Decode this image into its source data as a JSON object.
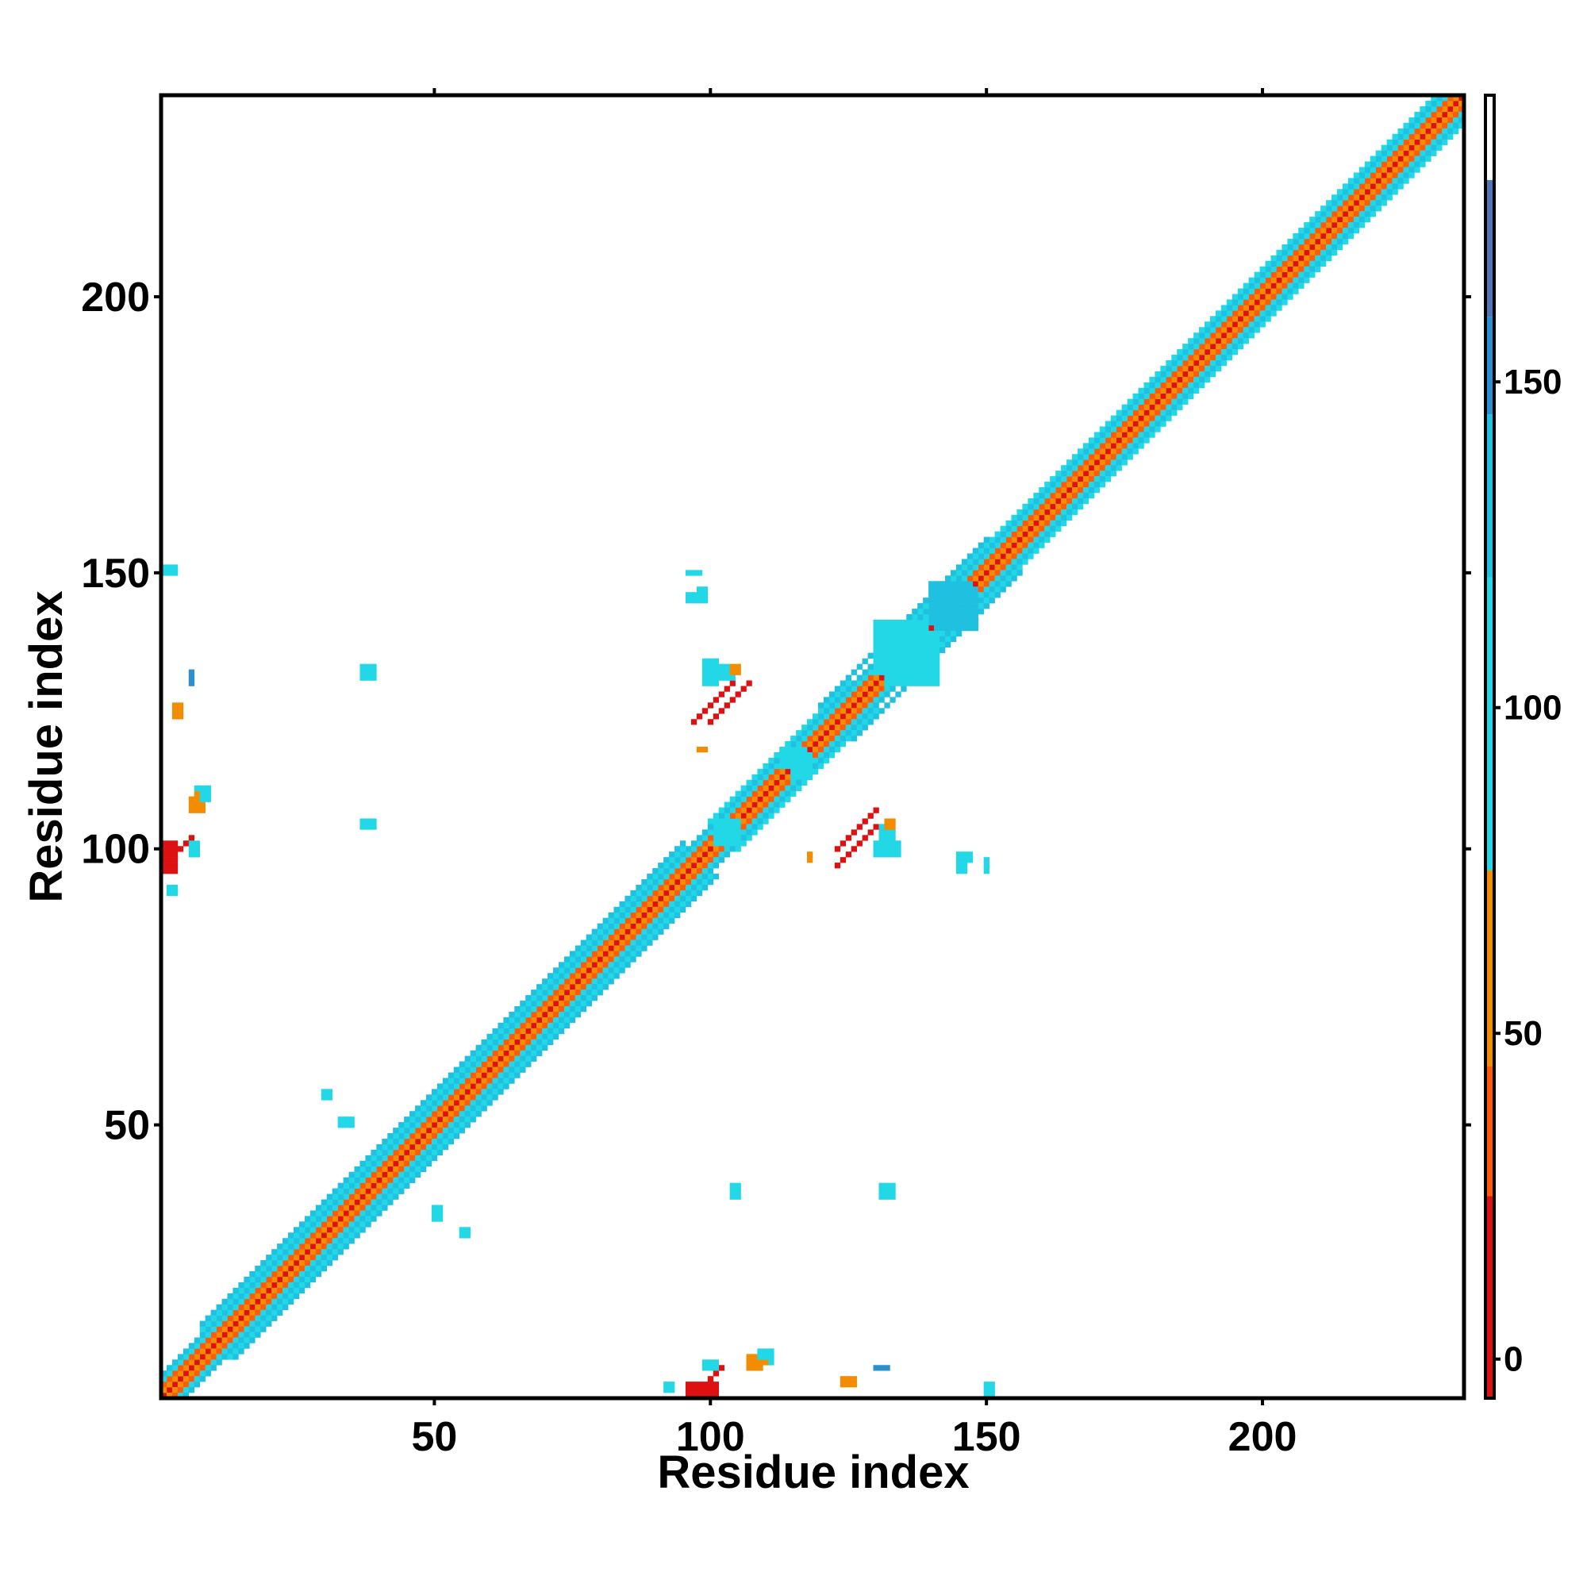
{
  "chart_data": {
    "type": "heatmap",
    "title": "",
    "xlabel": "Residue index",
    "ylabel": "Residue index",
    "xlim": [
      1,
      236
    ],
    "ylim": [
      1,
      236
    ],
    "x_ticks": [
      50,
      100,
      150,
      200
    ],
    "y_ticks": [
      50,
      100,
      150,
      200
    ],
    "grid": false,
    "colorbar": {
      "range": [
        -6,
        194
      ],
      "ticks": [
        0,
        50,
        100,
        150
      ],
      "bands": [
        {
          "from": -6,
          "to": 25,
          "color": "#dd1111"
        },
        {
          "from": 25,
          "to": 45,
          "color": "#ff5a0a"
        },
        {
          "from": 45,
          "to": 75,
          "color": "#f28c00"
        },
        {
          "from": 75,
          "to": 120,
          "color": "#22d8e6"
        },
        {
          "from": 120,
          "to": 145,
          "color": "#1fc0e0"
        },
        {
          "from": 145,
          "to": 160,
          "color": "#2e8fcf"
        },
        {
          "from": 160,
          "to": 181,
          "color": "#5076b8"
        },
        {
          "from": 181,
          "to": 194,
          "color": "#ffffff"
        }
      ]
    },
    "symmetric": true,
    "regions": [
      {
        "kind": "band",
        "from": 1,
        "to": 236,
        "offset": 0,
        "value": -5
      },
      {
        "kind": "band",
        "from": 1,
        "to": 236,
        "offset": 1,
        "value": 60
      },
      {
        "kind": "band",
        "from": 1,
        "to": 236,
        "offset": 2,
        "value": 35
      },
      {
        "kind": "band",
        "from": 1,
        "to": 236,
        "offset": 3,
        "value": 100
      },
      {
        "kind": "band",
        "from": 1,
        "to": 236,
        "offset": 4,
        "value": 120
      },
      {
        "kind": "band",
        "from": 8,
        "to": 95,
        "offset": 5,
        "value": 95
      },
      {
        "kind": "band",
        "from": 8,
        "to": 95,
        "offset": 6,
        "value": 130
      },
      {
        "kind": "band",
        "from": 100,
        "to": 125,
        "offset": 5,
        "value": 95
      },
      {
        "kind": "band",
        "from": 135,
        "to": 160,
        "offset": 5,
        "value": 95
      },
      {
        "kind": "band",
        "from": 160,
        "to": 236,
        "offset": 5,
        "value": 110
      },
      {
        "kind": "band",
        "from": 120,
        "to": 150,
        "offset": 6,
        "value": 140
      },
      {
        "kind": "antidiag",
        "x0": 97,
        "y0": 1,
        "len": 6,
        "value": 5
      },
      {
        "kind": "antidiag",
        "x0": 98,
        "y0": 2,
        "len": 5,
        "value": 10
      },
      {
        "kind": "antidiag",
        "x0": 123,
        "y0": 100,
        "len": 8,
        "value": 5
      },
      {
        "kind": "antidiag",
        "x0": 124,
        "y0": 101,
        "len": 7,
        "value": 15
      },
      {
        "kind": "antidiag",
        "x0": 97,
        "y0": 123,
        "len": 8,
        "value": 5
      },
      {
        "kind": "antidiag",
        "x0": 98,
        "y0": 124,
        "len": 7,
        "value": 15
      },
      {
        "kind": "block",
        "x0": 101,
        "y0": 101,
        "w": 5,
        "h": 5,
        "value": 110
      },
      {
        "kind": "block",
        "x0": 115,
        "y0": 113,
        "w": 4,
        "h": 5,
        "value": 110
      },
      {
        "kind": "block",
        "x0": 130,
        "y0": 132,
        "w": 10,
        "h": 10,
        "value": 115
      },
      {
        "kind": "block",
        "x0": 141,
        "y0": 140,
        "w": 8,
        "h": 8,
        "value": 125
      },
      {
        "kind": "block",
        "x0": 1,
        "y0": 96,
        "w": 3,
        "h": 6,
        "value": 5
      },
      {
        "kind": "block",
        "x0": 6,
        "y0": 99,
        "w": 2,
        "h": 3,
        "value": 105
      },
      {
        "kind": "block",
        "x0": 6,
        "y0": 107,
        "w": 2,
        "h": 3,
        "value": 55
      },
      {
        "kind": "block",
        "x0": 7,
        "y0": 110,
        "w": 3,
        "h": 2,
        "value": 105
      },
      {
        "kind": "block",
        "x0": 37,
        "y0": 131,
        "w": 3,
        "h": 3,
        "value": 110
      },
      {
        "kind": "block",
        "x0": 37,
        "y0": 104,
        "w": 3,
        "h": 2,
        "value": 120
      },
      {
        "kind": "block",
        "x0": 1,
        "y0": 150,
        "w": 3,
        "h": 2,
        "value": 105
      },
      {
        "kind": "block",
        "x0": 3,
        "y0": 125,
        "w": 2,
        "h": 2,
        "value": 55
      },
      {
        "kind": "block",
        "x0": 101,
        "y0": 131,
        "w": 4,
        "h": 3,
        "value": 110
      },
      {
        "kind": "block",
        "x0": 104,
        "y0": 132,
        "w": 2,
        "h": 2,
        "value": 55
      },
      {
        "kind": "block",
        "x0": 130,
        "y0": 99,
        "w": 5,
        "h": 3,
        "value": 110
      },
      {
        "kind": "block",
        "x0": 104,
        "y0": 37,
        "w": 2,
        "h": 3,
        "value": 110
      },
      {
        "kind": "block",
        "x0": 131,
        "y0": 37,
        "w": 3,
        "h": 3,
        "value": 110
      },
      {
        "kind": "block",
        "x0": 107,
        "y0": 7,
        "w": 4,
        "h": 2,
        "value": 55
      },
      {
        "kind": "block",
        "x0": 109,
        "y0": 8,
        "w": 3,
        "h": 2,
        "value": 105
      },
      {
        "kind": "block",
        "x0": 124,
        "y0": 3,
        "w": 2,
        "h": 2,
        "value": 45
      },
      {
        "kind": "block",
        "x0": 150,
        "y0": 1,
        "w": 2,
        "h": 2,
        "value": 105
      },
      {
        "kind": "block",
        "x0": 130,
        "y0": 6,
        "w": 3,
        "h": 1,
        "value": 155
      },
      {
        "kind": "block",
        "x0": 92,
        "y0": 2,
        "w": 2,
        "h": 2,
        "value": 100
      },
      {
        "kind": "block",
        "x0": 33,
        "y0": 50,
        "w": 3,
        "h": 2,
        "value": 105
      },
      {
        "kind": "block",
        "x0": 30,
        "y0": 55,
        "w": 2,
        "h": 2,
        "value": 100
      },
      {
        "kind": "block",
        "x0": 50,
        "y0": 33,
        "w": 2,
        "h": 3,
        "value": 105
      },
      {
        "kind": "block",
        "x0": 55,
        "y0": 30,
        "w": 2,
        "h": 2,
        "value": 100
      },
      {
        "kind": "block",
        "x0": 118,
        "y0": 98,
        "w": 1,
        "h": 2,
        "value": 50
      },
      {
        "kind": "block",
        "x0": 98,
        "y0": 118,
        "w": 2,
        "h": 1,
        "value": 50
      },
      {
        "kind": "block",
        "x0": 145,
        "y0": 97,
        "w": 2,
        "h": 2,
        "value": 100
      },
      {
        "kind": "block",
        "x0": 150,
        "y0": 96,
        "w": 1,
        "h": 3,
        "value": 105
      },
      {
        "kind": "block",
        "x0": 96,
        "y0": 145,
        "w": 2,
        "h": 2,
        "value": 100
      },
      {
        "kind": "block",
        "x0": 96,
        "y0": 150,
        "w": 3,
        "h": 1,
        "value": 105
      },
      {
        "kind": "block",
        "x0": 98,
        "y0": 145,
        "w": 2,
        "h": 3,
        "value": 110
      }
    ]
  }
}
